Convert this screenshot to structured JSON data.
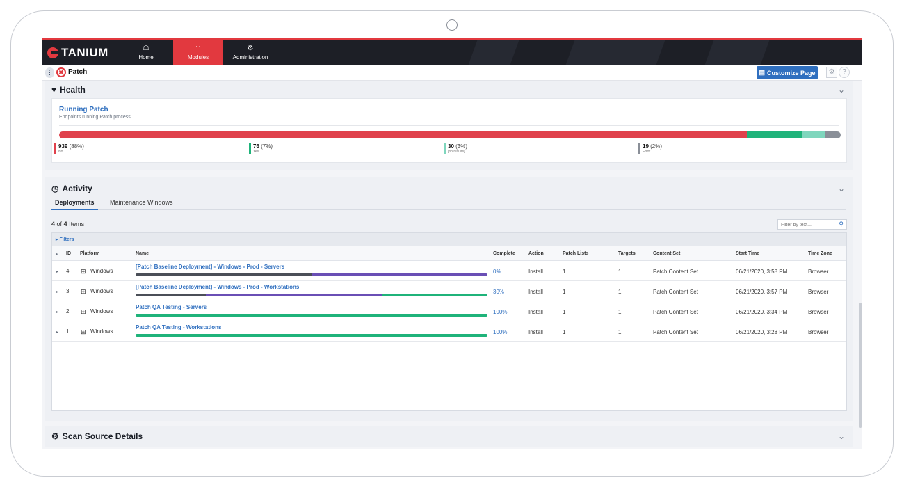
{
  "nav": {
    "logo": "TANIUM",
    "items": [
      {
        "label": "Home",
        "icon": "home-icon",
        "active": false
      },
      {
        "label": "Modules",
        "icon": "grid-icon",
        "active": true
      },
      {
        "label": "Administration",
        "icon": "gears-icon",
        "active": false
      }
    ]
  },
  "breadcrumb": {
    "title": "Patch",
    "customize_label": "Customize Page"
  },
  "health": {
    "title": "Health",
    "card_title": "Running Patch",
    "card_subtitle": "Endpoints running Patch process",
    "segments": [
      {
        "count": "939",
        "pct": "(88%)",
        "label": "No",
        "color": "#e0414c",
        "fraction": 0.88
      },
      {
        "count": "76",
        "pct": "(7%)",
        "label": "Yes",
        "color": "#1fb37a",
        "fraction": 0.07
      },
      {
        "count": "30",
        "pct": "(3%)",
        "label": "[no results]",
        "color": "#7fd6bd",
        "fraction": 0.03
      },
      {
        "count": "19",
        "pct": "(2%)",
        "label": "Error",
        "color": "#8a8f98",
        "fraction": 0.02
      }
    ]
  },
  "activity": {
    "title": "Activity",
    "tabs": [
      "Deployments",
      "Maintenance Windows"
    ],
    "count_shown": "4",
    "count_of": "of",
    "count_total": "4",
    "count_suffix": "Items",
    "filter_placeholder": "Filter by text...",
    "filters_label": "Filters",
    "columns": [
      "ID",
      "Platform",
      "Name",
      "Complete",
      "Action",
      "Patch Lists",
      "Targets",
      "Content Set",
      "Start Time",
      "Time Zone"
    ],
    "rows": [
      {
        "id": "4",
        "platform": "Windows",
        "name": "[Patch Baseline Deployment] - Windows - Prod - Servers",
        "complete": "0%",
        "action": "Install",
        "patch_lists": "1",
        "targets": "1",
        "content_set": "Patch Content Set",
        "start_time": "06/21/2020, 3:58 PM",
        "time_zone": "Browser",
        "progress": [
          {
            "color": "#4b4f58",
            "fraction": 0.5
          },
          {
            "color": "#6a4fb5",
            "fraction": 0.5
          }
        ]
      },
      {
        "id": "3",
        "platform": "Windows",
        "name": "[Patch Baseline Deployment] - Windows - Prod - Workstations",
        "complete": "30%",
        "action": "Install",
        "patch_lists": "1",
        "targets": "1",
        "content_set": "Patch Content Set",
        "start_time": "06/21/2020, 3:57 PM",
        "time_zone": "Browser",
        "progress": [
          {
            "color": "#4b4f58",
            "fraction": 0.2
          },
          {
            "color": "#6a4fb5",
            "fraction": 0.5
          },
          {
            "color": "#1fb37a",
            "fraction": 0.3
          }
        ]
      },
      {
        "id": "2",
        "platform": "Windows",
        "name": "Patch QA Testing - Servers",
        "complete": "100%",
        "action": "Install",
        "patch_lists": "1",
        "targets": "1",
        "content_set": "Patch Content Set",
        "start_time": "06/21/2020, 3:34 PM",
        "time_zone": "Browser",
        "progress": [
          {
            "color": "#1fb37a",
            "fraction": 1.0
          }
        ]
      },
      {
        "id": "1",
        "platform": "Windows",
        "name": "Patch QA Testing - Workstations",
        "complete": "100%",
        "action": "Install",
        "patch_lists": "1",
        "targets": "1",
        "content_set": "Patch Content Set",
        "start_time": "06/21/2020, 3:28 PM",
        "time_zone": "Browser",
        "progress": [
          {
            "color": "#1fb37a",
            "fraction": 1.0
          }
        ]
      }
    ]
  },
  "scan": {
    "title": "Scan Source Details"
  },
  "colors": {
    "brand_red": "#e2393f",
    "accent_blue": "#2f6fbf",
    "nav_bg": "#1d1f26"
  }
}
